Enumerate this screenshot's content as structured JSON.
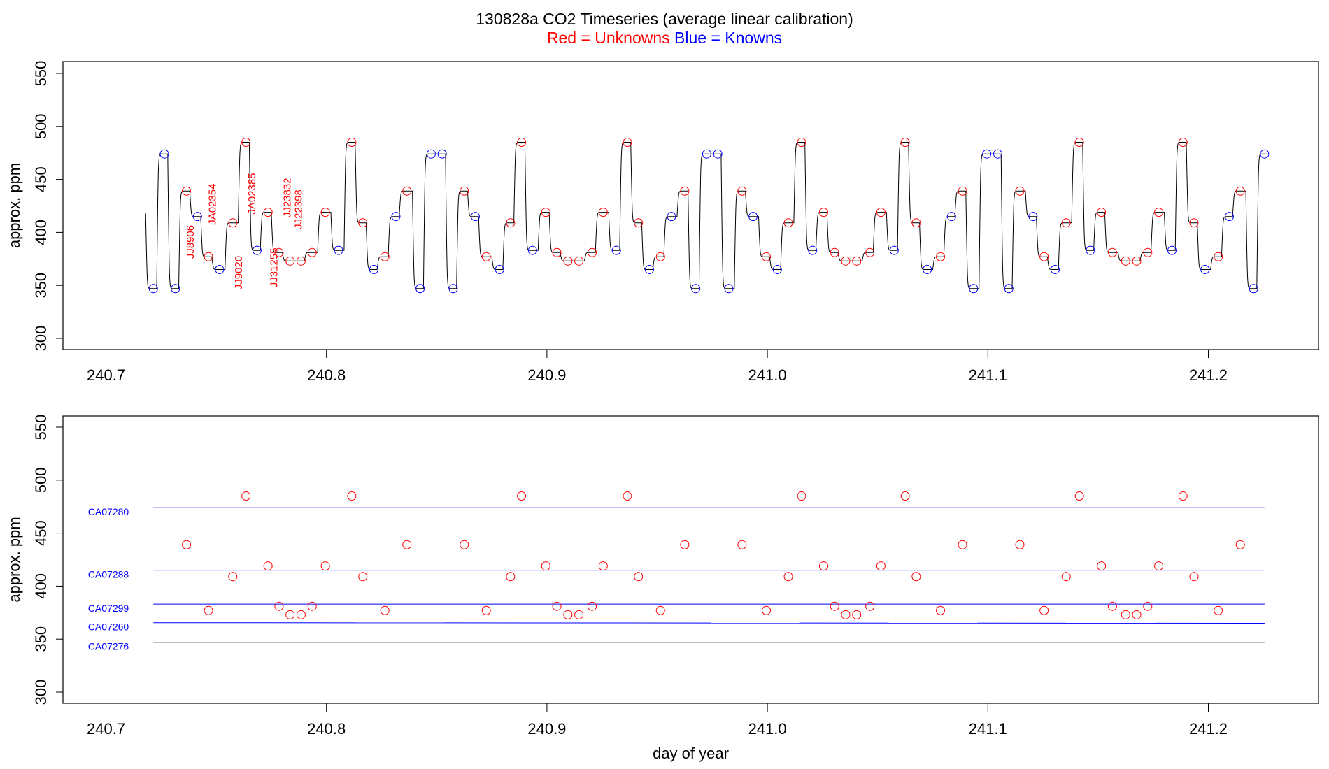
{
  "figure": {
    "title": "130828a   CO2 Timeseries (average linear calibration)",
    "subtitle_red": "Red = Unknowns",
    "subtitle_blue": "Blue = Knowns",
    "colors": {
      "unknown": "#ff0000",
      "known": "#0000ff",
      "trace": "#000000",
      "ref_line": "#0000ff",
      "ref_line_low": "#000000"
    }
  },
  "chart_data": [
    {
      "type": "line",
      "panel": "top",
      "title": "",
      "xlabel": "",
      "ylabel": "approx. ppm",
      "xlim": [
        240.7,
        241.25
      ],
      "ylim": [
        300,
        550
      ],
      "xticks": [
        240.7,
        240.8,
        240.9,
        241.0,
        241.1,
        241.2
      ],
      "xtick_labels": [
        "240.7",
        "240.8",
        "240.9",
        "241.0",
        "241.1",
        "241.2"
      ],
      "yticks": [
        300,
        350,
        400,
        450,
        500,
        550
      ],
      "ytick_labels": [
        "300",
        "350",
        "400",
        "450",
        "500",
        "550"
      ],
      "trace_start": 418,
      "samples": [
        {
          "x": 240.7215,
          "y": 347,
          "kind": "known"
        },
        {
          "x": 240.7265,
          "y": 474,
          "kind": "known"
        },
        {
          "x": 240.7315,
          "y": 347,
          "kind": "known"
        },
        {
          "x": 240.7365,
          "y": 439,
          "kind": "unknown"
        },
        {
          "x": 240.7415,
          "y": 415,
          "kind": "known"
        },
        {
          "x": 240.7465,
          "y": 377,
          "kind": "unknown"
        },
        {
          "x": 240.7515,
          "y": 365,
          "kind": "known"
        },
        {
          "x": 240.7575,
          "y": 409,
          "kind": "unknown"
        },
        {
          "x": 240.7635,
          "y": 485,
          "kind": "unknown"
        },
        {
          "x": 240.7685,
          "y": 383,
          "kind": "known"
        },
        {
          "x": 240.7735,
          "y": 419,
          "kind": "unknown"
        },
        {
          "x": 240.7785,
          "y": 381,
          "kind": "unknown"
        },
        {
          "x": 240.7835,
          "y": 373,
          "kind": "unknown"
        },
        {
          "x": 240.7885,
          "y": 373,
          "kind": "unknown"
        },
        {
          "x": 240.7935,
          "y": 381,
          "kind": "unknown"
        },
        {
          "x": 240.7995,
          "y": 419,
          "kind": "unknown"
        },
        {
          "x": 240.8055,
          "y": 383,
          "kind": "known"
        },
        {
          "x": 240.8115,
          "y": 485,
          "kind": "unknown"
        },
        {
          "x": 240.8165,
          "y": 409,
          "kind": "unknown"
        },
        {
          "x": 240.8215,
          "y": 365,
          "kind": "known"
        },
        {
          "x": 240.8265,
          "y": 377,
          "kind": "unknown"
        },
        {
          "x": 240.8315,
          "y": 415,
          "kind": "known"
        },
        {
          "x": 240.8365,
          "y": 439,
          "kind": "unknown"
        },
        {
          "x": 240.8425,
          "y": 347,
          "kind": "known"
        },
        {
          "x": 240.8475,
          "y": 474,
          "kind": "known"
        },
        {
          "x": 240.8525,
          "y": 474,
          "kind": "known"
        },
        {
          "x": 240.8575,
          "y": 347,
          "kind": "known"
        },
        {
          "x": 240.8625,
          "y": 439,
          "kind": "unknown"
        },
        {
          "x": 240.8675,
          "y": 415,
          "kind": "known"
        },
        {
          "x": 240.8725,
          "y": 377,
          "kind": "unknown"
        },
        {
          "x": 240.8785,
          "y": 365,
          "kind": "known"
        },
        {
          "x": 240.8835,
          "y": 409,
          "kind": "unknown"
        },
        {
          "x": 240.8885,
          "y": 485,
          "kind": "unknown"
        },
        {
          "x": 240.8935,
          "y": 383,
          "kind": "known"
        },
        {
          "x": 240.8995,
          "y": 419,
          "kind": "unknown"
        },
        {
          "x": 240.9045,
          "y": 381,
          "kind": "unknown"
        },
        {
          "x": 240.9095,
          "y": 373,
          "kind": "unknown"
        },
        {
          "x": 240.9145,
          "y": 373,
          "kind": "unknown"
        },
        {
          "x": 240.9205,
          "y": 381,
          "kind": "unknown"
        },
        {
          "x": 240.9255,
          "y": 419,
          "kind": "unknown"
        },
        {
          "x": 240.9315,
          "y": 383,
          "kind": "known"
        },
        {
          "x": 240.9365,
          "y": 485,
          "kind": "unknown"
        },
        {
          "x": 240.9415,
          "y": 409,
          "kind": "unknown"
        },
        {
          "x": 240.9465,
          "y": 365,
          "kind": "known"
        },
        {
          "x": 240.9515,
          "y": 377,
          "kind": "unknown"
        },
        {
          "x": 240.9565,
          "y": 415,
          "kind": "known"
        },
        {
          "x": 240.9625,
          "y": 439,
          "kind": "unknown"
        },
        {
          "x": 240.9675,
          "y": 347,
          "kind": "known"
        },
        {
          "x": 240.9725,
          "y": 474,
          "kind": "known"
        },
        {
          "x": 240.9775,
          "y": 474,
          "kind": "known"
        },
        {
          "x": 240.9825,
          "y": 347,
          "kind": "known"
        },
        {
          "x": 240.9885,
          "y": 439,
          "kind": "unknown"
        },
        {
          "x": 240.9935,
          "y": 415,
          "kind": "known"
        },
        {
          "x": 240.9995,
          "y": 377,
          "kind": "unknown"
        },
        {
          "x": 241.0045,
          "y": 365,
          "kind": "known"
        },
        {
          "x": 241.0095,
          "y": 409,
          "kind": "unknown"
        },
        {
          "x": 241.0155,
          "y": 485,
          "kind": "unknown"
        },
        {
          "x": 241.0205,
          "y": 383,
          "kind": "known"
        },
        {
          "x": 241.0255,
          "y": 419,
          "kind": "unknown"
        },
        {
          "x": 241.0305,
          "y": 381,
          "kind": "unknown"
        },
        {
          "x": 241.0355,
          "y": 373,
          "kind": "unknown"
        },
        {
          "x": 241.0405,
          "y": 373,
          "kind": "unknown"
        },
        {
          "x": 241.0465,
          "y": 381,
          "kind": "unknown"
        },
        {
          "x": 241.0515,
          "y": 419,
          "kind": "unknown"
        },
        {
          "x": 241.0575,
          "y": 383,
          "kind": "known"
        },
        {
          "x": 241.0625,
          "y": 485,
          "kind": "unknown"
        },
        {
          "x": 241.0675,
          "y": 409,
          "kind": "unknown"
        },
        {
          "x": 241.0725,
          "y": 365,
          "kind": "known"
        },
        {
          "x": 241.0785,
          "y": 377,
          "kind": "unknown"
        },
        {
          "x": 241.0835,
          "y": 415,
          "kind": "known"
        },
        {
          "x": 241.0885,
          "y": 439,
          "kind": "unknown"
        },
        {
          "x": 241.0935,
          "y": 347,
          "kind": "known"
        },
        {
          "x": 241.0995,
          "y": 474,
          "kind": "known"
        },
        {
          "x": 241.1045,
          "y": 474,
          "kind": "known"
        },
        {
          "x": 241.1095,
          "y": 347,
          "kind": "known"
        },
        {
          "x": 241.1145,
          "y": 439,
          "kind": "unknown"
        },
        {
          "x": 241.1205,
          "y": 415,
          "kind": "known"
        },
        {
          "x": 241.1255,
          "y": 377,
          "kind": "unknown"
        },
        {
          "x": 241.1305,
          "y": 365,
          "kind": "known"
        },
        {
          "x": 241.1355,
          "y": 409,
          "kind": "unknown"
        },
        {
          "x": 241.1415,
          "y": 485,
          "kind": "unknown"
        },
        {
          "x": 241.1465,
          "y": 383,
          "kind": "known"
        },
        {
          "x": 241.1515,
          "y": 419,
          "kind": "unknown"
        },
        {
          "x": 241.1565,
          "y": 381,
          "kind": "unknown"
        },
        {
          "x": 241.1625,
          "y": 373,
          "kind": "unknown"
        },
        {
          "x": 241.1675,
          "y": 373,
          "kind": "unknown"
        },
        {
          "x": 241.1725,
          "y": 381,
          "kind": "unknown"
        },
        {
          "x": 241.1775,
          "y": 419,
          "kind": "unknown"
        },
        {
          "x": 241.1835,
          "y": 383,
          "kind": "known"
        },
        {
          "x": 241.1885,
          "y": 485,
          "kind": "unknown"
        },
        {
          "x": 241.1935,
          "y": 409,
          "kind": "unknown"
        },
        {
          "x": 241.1985,
          "y": 365,
          "kind": "known"
        },
        {
          "x": 241.2045,
          "y": 377,
          "kind": "unknown"
        },
        {
          "x": 241.2095,
          "y": 415,
          "kind": "known"
        },
        {
          "x": 241.2145,
          "y": 439,
          "kind": "unknown"
        },
        {
          "x": 241.2205,
          "y": 347,
          "kind": "known"
        },
        {
          "x": 241.2255,
          "y": 474,
          "kind": "known"
        }
      ],
      "annotations": [
        {
          "text": "JJ8906",
          "x": 240.7385,
          "y": 375
        },
        {
          "text": "JA02354",
          "x": 240.7485,
          "y": 407
        },
        {
          "text": "JJ9020",
          "x": 240.7605,
          "y": 346
        },
        {
          "text": "JA02385",
          "x": 240.7665,
          "y": 417
        },
        {
          "text": "JJ31255",
          "x": 240.7765,
          "y": 348
        },
        {
          "text": "JJ23832",
          "x": 240.7825,
          "y": 414
        },
        {
          "text": "JJ22398",
          "x": 240.7875,
          "y": 403
        }
      ]
    },
    {
      "type": "scatter",
      "panel": "bottom",
      "title": "",
      "xlabel": "day of year",
      "ylabel": "approx. ppm",
      "xlim": [
        240.7,
        241.25
      ],
      "ylim": [
        300,
        550
      ],
      "xticks": [
        240.7,
        240.8,
        240.9,
        241.0,
        241.1,
        241.2
      ],
      "xtick_labels": [
        "240.7",
        "240.8",
        "240.9",
        "241.0",
        "241.1",
        "241.2"
      ],
      "yticks": [
        300,
        350,
        400,
        450,
        500,
        550
      ],
      "ytick_labels": [
        "300",
        "350",
        "400",
        "450",
        "500",
        "550"
      ],
      "reference_lines": [
        {
          "label": "CA07280",
          "y": 474,
          "y_end": 474,
          "x_start": 240.7215,
          "x_end": 241.2255,
          "color": "#0000ff"
        },
        {
          "label": "CA07288",
          "y": 415,
          "y_end": 415,
          "x_start": 240.7215,
          "x_end": 241.2255,
          "color": "#0000ff"
        },
        {
          "label": "CA07299",
          "y": 383,
          "y_end": 383,
          "x_start": 240.7215,
          "x_end": 241.2255,
          "color": "#0000ff"
        },
        {
          "label": "CA07260",
          "y": 365.5,
          "y_end": 365,
          "x_start": 240.7215,
          "x_end": 241.2255,
          "color": "#0000ff"
        },
        {
          "label": "CA07276",
          "y": 347,
          "y_end": 347,
          "x_start": 240.7215,
          "x_end": 241.2255,
          "color": "#000000"
        }
      ],
      "unknowns_source": "top-panel samples with kind = unknown"
    }
  ]
}
